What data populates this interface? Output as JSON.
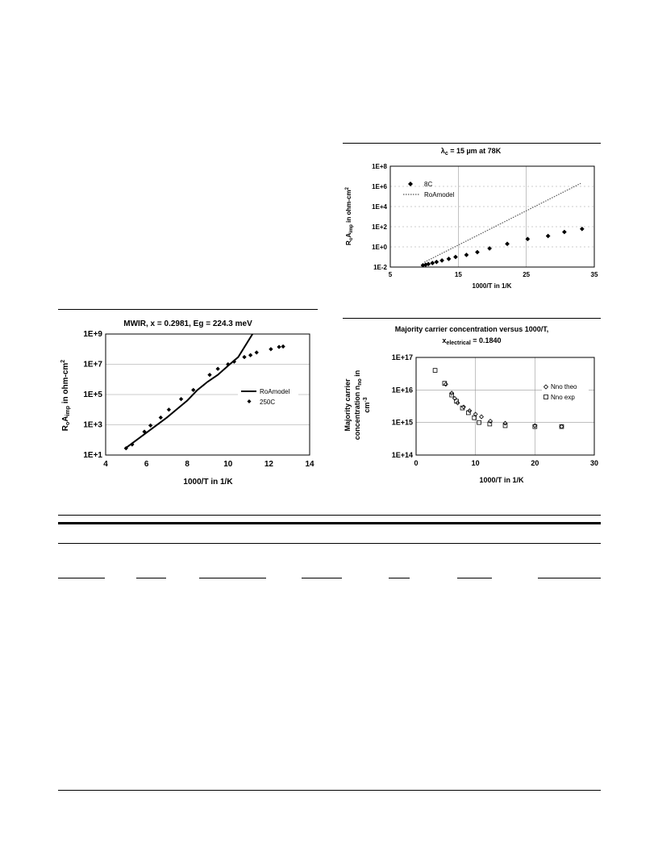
{
  "chart_data": [
    {
      "type": "scatter",
      "title": "λc = 15 µm at 78K",
      "title_main": "λ",
      "title_sub": "c",
      "title_rest": " = 15 µm at 78K",
      "xlabel": "1000/T in 1/K",
      "ylabel_parts": [
        "R",
        "o",
        "A",
        "imp",
        " in ohm-cm",
        "2"
      ],
      "yscale": "log",
      "xlim": [
        5,
        35
      ],
      "ylim": [
        0.01,
        100000000
      ],
      "x_ticks": [
        "5",
        "15",
        "25",
        "35"
      ],
      "y_ticks": [
        "1E-2",
        "1E+0",
        "1E+2",
        "1E+4",
        "1E+6",
        "1E+8"
      ],
      "legend_position": "top-left",
      "series": [
        {
          "name": "8C",
          "style": "diamond",
          "x": [
            9.8,
            10.2,
            10.6,
            11.2,
            11.8,
            12.6,
            13.6,
            14.6,
            16.2,
            17.8,
            19.6,
            22.2,
            25.2,
            28.2,
            30.6,
            33.2
          ],
          "y": [
            0.015,
            0.017,
            0.02,
            0.025,
            0.032,
            0.045,
            0.065,
            0.1,
            0.16,
            0.3,
            0.7,
            2,
            6,
            12,
            30,
            60
          ]
        },
        {
          "name": "RoAmodel",
          "style": "dotted",
          "x": [
            10,
            33
          ],
          "y": [
            0.03,
            2000000
          ]
        }
      ]
    },
    {
      "type": "line",
      "title": "MWIR, x = 0.2981, Eg = 224.3 meV",
      "xlabel": "1000/T in 1/K",
      "ylabel_parts": [
        "R",
        "o",
        "A",
        "imp",
        " in ohm-cm",
        "2"
      ],
      "yscale": "log",
      "xlim": [
        4,
        14
      ],
      "ylim": [
        10,
        1000000000
      ],
      "x_ticks": [
        "4",
        "6",
        "8",
        "10",
        "12",
        "14"
      ],
      "y_ticks": [
        "1E+1",
        "1E+3",
        "1E+5",
        "1E+7",
        "1E+9"
      ],
      "legend_position": "center-right",
      "series": [
        {
          "name": "RoAmodel",
          "style": "solid",
          "x": [
            5,
            6,
            7,
            8,
            8.5,
            9,
            9.5,
            10,
            10.5,
            11.2
          ],
          "y": [
            30,
            300,
            3000,
            40000,
            200000,
            700000,
            2000000,
            8000000,
            30000000,
            1000000000
          ]
        },
        {
          "name": "250C",
          "style": "diamond",
          "x": [
            5,
            5.3,
            5.9,
            6.2,
            6.7,
            7.1,
            7.7,
            8.3,
            9.1,
            9.5,
            10,
            10.3,
            10.8,
            11.1,
            11.4,
            12.1,
            12.5,
            12.7
          ],
          "y": [
            28,
            50,
            350,
            900,
            3000,
            10000,
            50000,
            200000,
            2000000,
            5000000,
            10000000,
            15000000,
            30000000,
            40000000,
            60000000,
            100000000,
            140000000,
            150000000
          ]
        }
      ]
    },
    {
      "type": "scatter",
      "title": "Majority carrier concentration versus 1000/T,",
      "title2_main": "x",
      "title2_sub": "electrical",
      "title2_rest": " = 0.1840",
      "xlabel": "1000/T in 1/K",
      "ylabel_line1": "Majority carrier",
      "ylabel_line2_main": "concentration n",
      "ylabel_line2_sub": "no",
      "ylabel_line2_rest": " in",
      "ylabel_line3_main": "cm",
      "ylabel_line3_sup": "-3",
      "yscale": "log",
      "xlim": [
        0,
        30
      ],
      "ylim": [
        100000000000000,
        100000000000000000
      ],
      "x_ticks": [
        "0",
        "10",
        "20",
        "30"
      ],
      "y_ticks": [
        "1E+14",
        "1E+15",
        "1E+16",
        "1E+17"
      ],
      "legend_position": "right",
      "series": [
        {
          "name": "Nno theo",
          "style": "open-diamond",
          "x": [
            5,
            6,
            6.5,
            7,
            8,
            9,
            10,
            11,
            12.5,
            15,
            20,
            24.5
          ],
          "y": [
            15000000000000000,
            8000000000000000,
            5500000000000000,
            4000000000000000,
            3000000000000000,
            2300000000000000,
            1800000000000000,
            1500000000000000,
            1100000000000000,
            950000000000000,
            800000000000000,
            750000000000000
          ]
        },
        {
          "name": "Nno exp",
          "style": "open-square",
          "x": [
            3.2,
            4.8,
            6,
            6.8,
            7.8,
            8.8,
            9.8,
            10.6,
            12.4,
            15,
            20,
            24.5
          ],
          "y": [
            40000000000000000,
            16000000000000000,
            7000000000000000,
            4500000000000000,
            2800000000000000,
            2000000000000000,
            1400000000000000,
            1000000000000000,
            900000000000000,
            800000000000000,
            750000000000000,
            750000000000000
          ]
        }
      ]
    }
  ]
}
